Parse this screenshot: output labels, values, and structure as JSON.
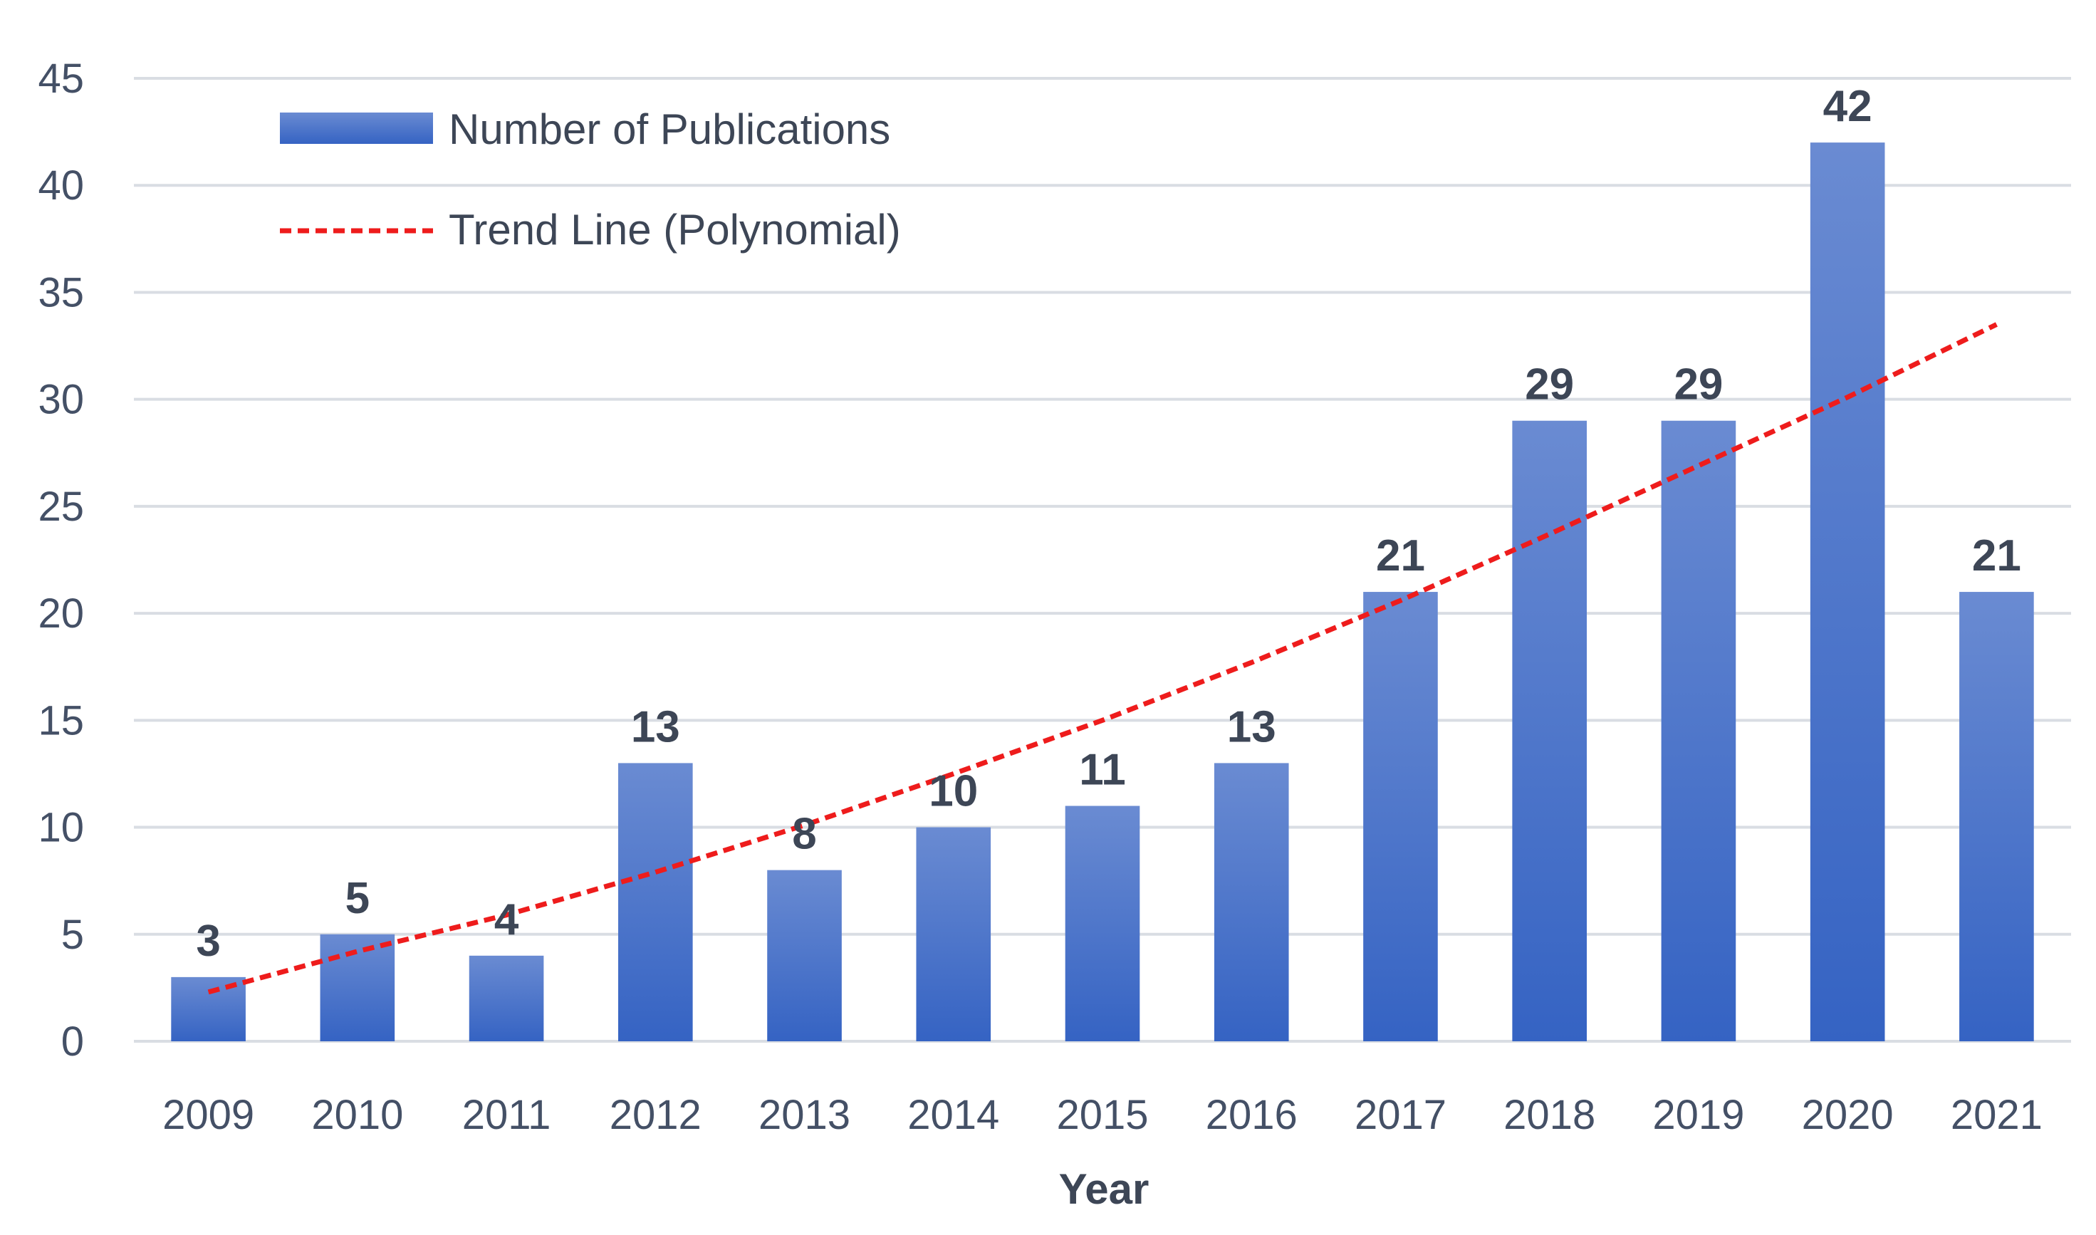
{
  "chart_data": {
    "type": "bar",
    "categories": [
      "2009",
      "2010",
      "2011",
      "2012",
      "2013",
      "2014",
      "2015",
      "2016",
      "2017",
      "2018",
      "2019",
      "2020",
      "2021"
    ],
    "series": [
      {
        "name": "Number of Publications",
        "values": [
          3,
          5,
          4,
          13,
          8,
          10,
          11,
          13,
          21,
          29,
          29,
          42,
          21
        ]
      }
    ],
    "trend": {
      "name": "Trend Line (Polynomial)",
      "type": "polynomial",
      "values": [
        2.3,
        4.2,
        5.9,
        7.9,
        10.1,
        12.5,
        15.0,
        17.7,
        20.6,
        23.7,
        26.9,
        30.1,
        33.5
      ]
    },
    "title": "",
    "xlabel": "Year",
    "ylabel": "",
    "ylim": [
      0,
      45
    ],
    "yticks": [
      0,
      5,
      10,
      15,
      20,
      25,
      30,
      35,
      40,
      45
    ],
    "grid": true,
    "legend_position": "top-left",
    "colors": {
      "bar_top": "#6a8bd2",
      "bar_bottom": "#3563c3",
      "trend": "#ee1c1c",
      "grid": "#d9dde3"
    }
  }
}
